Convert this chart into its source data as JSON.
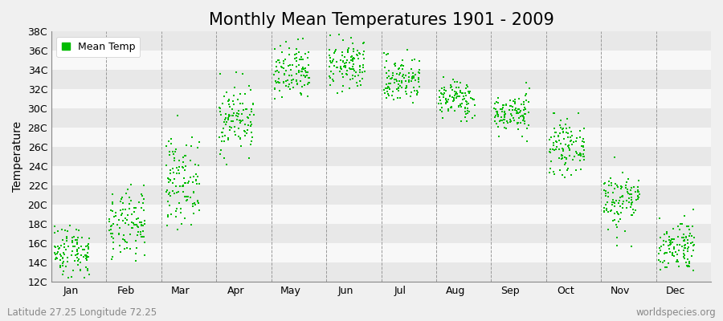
{
  "title": "Monthly Mean Temperatures 1901 - 2009",
  "ylabel": "Temperature",
  "subtitle_left": "Latitude 27.25 Longitude 72.25",
  "subtitle_right": "worldspecies.org",
  "legend_label": "Mean Temp",
  "ylim": [
    12,
    38
  ],
  "yticks": [
    12,
    14,
    16,
    18,
    20,
    22,
    24,
    26,
    28,
    30,
    32,
    34,
    36,
    38
  ],
  "ytick_labels": [
    "12C",
    "14C",
    "16C",
    "18C",
    "20C",
    "22C",
    "24C",
    "26C",
    "28C",
    "30C",
    "32C",
    "34C",
    "36C",
    "38C"
  ],
  "months": [
    "Jan",
    "Feb",
    "Mar",
    "Apr",
    "May",
    "Jun",
    "Jul",
    "Aug",
    "Sep",
    "Oct",
    "Nov",
    "Dec"
  ],
  "mean_temps": [
    15.2,
    17.8,
    22.5,
    29.0,
    33.5,
    34.5,
    33.0,
    31.0,
    29.5,
    26.0,
    20.5,
    15.8
  ],
  "std_temps": [
    1.4,
    1.8,
    2.2,
    1.8,
    1.5,
    1.3,
    1.2,
    1.0,
    1.0,
    1.3,
    1.6,
    1.4
  ],
  "n_years": 109,
  "dot_color": "#00bb00",
  "background_color": "#f0f0f0",
  "stripe_light": "#f8f8f8",
  "stripe_dark": "#e8e8e8",
  "grid_color": "#999999",
  "title_fontsize": 15,
  "axis_fontsize": 10,
  "tick_fontsize": 9,
  "annotation_fontsize": 8.5
}
